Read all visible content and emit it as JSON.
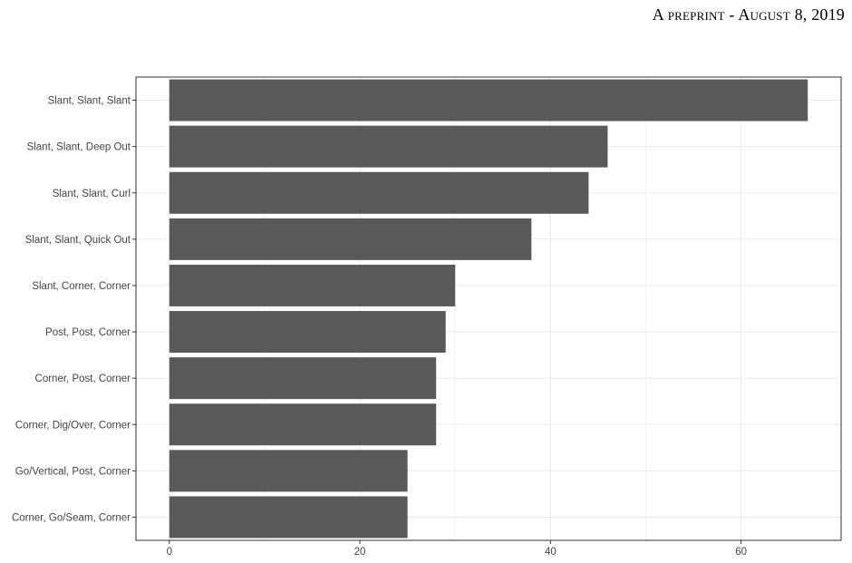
{
  "header": {
    "text": "A preprint - August 8, 2019",
    "parts": [
      "A",
      "preprint",
      " - ",
      "A",
      "ugust",
      " 8, 2019"
    ]
  },
  "chart_data": {
    "type": "bar",
    "orientation": "horizontal",
    "categories": [
      "Slant, Slant, Slant",
      "Slant, Slant, Deep Out",
      "Slant, Slant, Curl",
      "Slant, Slant, Quick Out",
      "Slant, Corner, Corner",
      "Post, Post, Corner",
      "Corner, Post, Corner",
      "Corner, Dig/Over, Corner",
      "Go/Vertical, Post, Corner",
      "Corner, Go/Seam, Corner"
    ],
    "values": [
      67,
      46,
      44,
      38,
      30,
      29,
      28,
      28,
      25,
      25
    ],
    "xlim": [
      -3.5,
      70.5
    ],
    "xticks": [
      0,
      20,
      40,
      60
    ],
    "xlabel": "",
    "ylabel": "",
    "title": "",
    "grid": true,
    "colors": {
      "bar": "#595959",
      "grid": "#ebebeb",
      "panel_border": "#333333"
    }
  }
}
